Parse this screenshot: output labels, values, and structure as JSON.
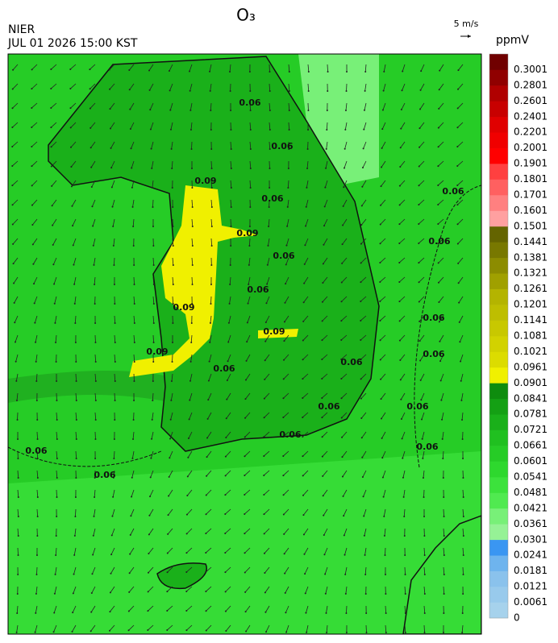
{
  "header": {
    "title": "O₃",
    "agency": "NIER",
    "datetime": "JUL 01 2026 15:00 KST",
    "wind_scale": "5 m/s"
  },
  "colorbar": {
    "unit": "ppmV",
    "labels": [
      "0",
      "0.0061",
      "0.0121",
      "0.0181",
      "0.0241",
      "0.0301",
      "0.0361",
      "0.0421",
      "0.0481",
      "0.0541",
      "0.0601",
      "0.0661",
      "0.0721",
      "0.0781",
      "0.0841",
      "0.0901",
      "0.0961",
      "0.1021",
      "0.1081",
      "0.1141",
      "0.1201",
      "0.1261",
      "0.1321",
      "0.1381",
      "0.1441",
      "0.1501",
      "0.1601",
      "0.1701",
      "0.1801",
      "0.1901",
      "0.2001",
      "0.2201",
      "0.2401",
      "0.2601",
      "0.2801",
      "0.3001"
    ],
    "colors": [
      "#a6d2ec",
      "#98caec",
      "#8ac2ec",
      "#6eb4ee",
      "#3a96f2",
      "#96f296",
      "#78f078",
      "#50ea50",
      "#3ce23c",
      "#2ed82e",
      "#26cc26",
      "#20c020",
      "#1ab01a",
      "#14a014",
      "#0e8c0e",
      "#f0f000",
      "#dcdc00",
      "#d2d200",
      "#c8c800",
      "#bebe00",
      "#b4b400",
      "#a0a000",
      "#8c8c00",
      "#787800",
      "#646400",
      "#ffa0a0",
      "#ff8080",
      "#ff6060",
      "#ff4040",
      "#ff0000",
      "#f00000",
      "#e00000",
      "#c80000",
      "#b00000",
      "#900000",
      "#700000"
    ]
  },
  "contour_labels": [
    "0.06",
    "0.06",
    "0.09",
    "0.06",
    "0.06",
    "0.09",
    "0.06",
    "0.06",
    "0.06",
    "0.09",
    "0.06",
    "0.09",
    "0.09",
    "0.06",
    "0.06",
    "0.06",
    "0.06",
    "0.06",
    "0.06",
    "0.06",
    "0.06",
    "0.06"
  ]
}
